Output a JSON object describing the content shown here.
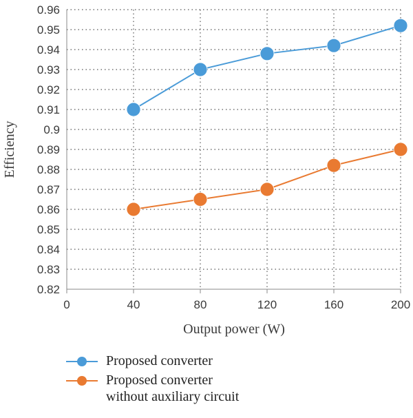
{
  "chart_data": {
    "type": "line",
    "xlabel": "Output power (W)",
    "ylabel": "Efficiency",
    "xlim": [
      0,
      200
    ],
    "ylim": [
      0.82,
      0.96
    ],
    "xticks": [
      "0",
      "40",
      "80",
      "120",
      "160",
      "200"
    ],
    "yticks": [
      "0.82",
      "0.83",
      "0.84",
      "0.85",
      "0.86",
      "0.87",
      "0.88",
      "0.89",
      "0.9",
      "0.91",
      "0.92",
      "0.93",
      "0.94",
      "0.95",
      "0.96"
    ],
    "grid": "dotted vertical and horizontal",
    "legend": "bottom",
    "x": [
      40,
      80,
      120,
      160,
      200
    ],
    "series": [
      {
        "name": "Proposed converter",
        "values": [
          0.91,
          0.93,
          0.938,
          0.942,
          0.952
        ],
        "color": "#4a9bd8"
      },
      {
        "name": "Proposed converter without auxiliary circuit",
        "values": [
          0.86,
          0.865,
          0.87,
          0.882,
          0.89
        ],
        "color": "#e97a31"
      }
    ]
  },
  "legend": {
    "items": [
      {
        "line1": "Proposed converter",
        "line2": ""
      },
      {
        "line1": "Proposed converter",
        "line2": "without auxiliary circuit"
      }
    ]
  }
}
